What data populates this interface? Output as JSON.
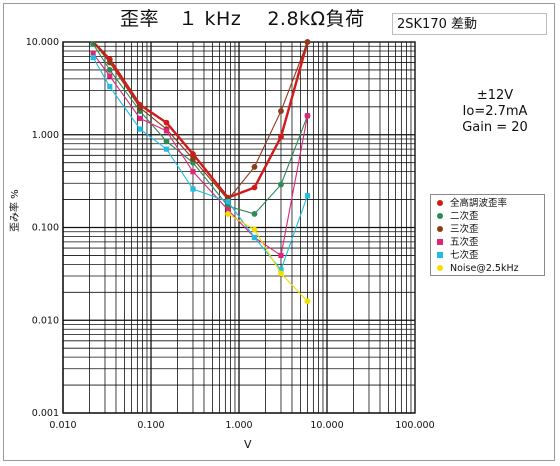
{
  "title": "歪率　１ kHz　 2.8kΩ負荷",
  "device_label": "2SK170 差動",
  "conditions": [
    "±12V",
    "Io=2.7mA",
    "Gain = 20"
  ],
  "chart_data": {
    "type": "line",
    "title": "歪率　１ kHz　 2.8kΩ負荷",
    "xlabel": "V",
    "ylabel": "歪み率 %",
    "x_scale": "log",
    "y_scale": "log",
    "xlim": [
      0.01,
      100
    ],
    "ylim": [
      0.001,
      10
    ],
    "x_ticks": [
      "0.010",
      "0.100",
      "1.000",
      "10.000",
      "100.000"
    ],
    "y_ticks": [
      "0.001",
      "0.010",
      "0.100",
      "1.000",
      "10.000"
    ],
    "grid": true,
    "legend_position": "right",
    "series": [
      {
        "name": "全高調波歪率",
        "color": "#d21a1a",
        "marker": "circle",
        "x": [
          0.022,
          0.034,
          0.075,
          0.15,
          0.3,
          0.75,
          1.5,
          3.0,
          6.0
        ],
        "y": [
          15,
          6.5,
          2.1,
          1.35,
          0.62,
          0.21,
          0.27,
          0.95,
          10
        ]
      },
      {
        "name": "二次歪",
        "color": "#2e8a57",
        "marker": "circle",
        "x": [
          0.022,
          0.034,
          0.075,
          0.15,
          0.3,
          0.75,
          1.5,
          3.0,
          6.0
        ],
        "y": [
          9.5,
          5.0,
          1.8,
          0.85,
          0.5,
          0.17,
          0.14,
          0.29,
          1.6
        ]
      },
      {
        "name": "三次歪",
        "color": "#8b3a1a",
        "marker": "circle",
        "x": [
          0.022,
          0.034,
          0.075,
          0.15,
          0.3,
          0.75,
          1.5,
          3.0,
          6.0
        ],
        "y": [
          11,
          6.0,
          1.95,
          1.15,
          0.55,
          0.2,
          0.45,
          1.8,
          10
        ]
      },
      {
        "name": "五次歪",
        "color": "#e0257a",
        "marker": "square",
        "x": [
          0.022,
          0.034,
          0.075,
          0.15,
          0.3,
          0.75,
          1.5,
          3.0,
          6.0
        ],
        "y": [
          7.5,
          4.3,
          1.5,
          1.1,
          0.4,
          0.155,
          0.078,
          0.05,
          1.6
        ]
      },
      {
        "name": "七次歪",
        "color": "#22bde0",
        "marker": "square",
        "x": [
          0.022,
          0.034,
          0.075,
          0.15,
          0.3,
          0.75,
          1.5,
          3.0,
          6.0
        ],
        "y": [
          6.8,
          3.3,
          1.15,
          0.7,
          0.26,
          0.19,
          0.078,
          0.035,
          0.22
        ]
      },
      {
        "name": "Noise@2.5kHz",
        "color": "#f2df00",
        "marker": "circle",
        "x": [
          0.75,
          1.5,
          3.0,
          6.0
        ],
        "y": [
          0.14,
          0.095,
          0.032,
          0.016
        ]
      }
    ]
  }
}
